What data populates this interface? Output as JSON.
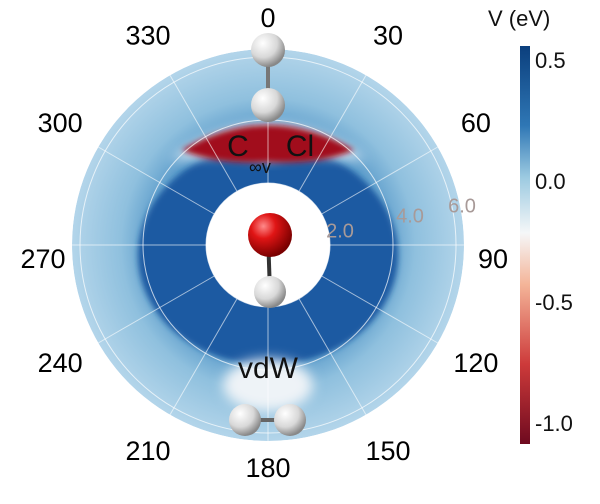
{
  "chart_data": {
    "type": "heatmap",
    "projection": "polar",
    "angular_ticks": [
      "0",
      "30",
      "60",
      "90",
      "120",
      "150",
      "180",
      "210",
      "240",
      "270",
      "300",
      "330"
    ],
    "radial_ticks": [
      "2.0",
      "4.0",
      "6.0"
    ],
    "radial_range": [
      2.0,
      6.3
    ],
    "colorbar": {
      "label": "V (eV)",
      "ticks": [
        "0.5",
        "0.0",
        "-0.5",
        "-1.0"
      ],
      "range": [
        -1.0,
        0.5
      ],
      "colormap": "RdBu",
      "colors": {
        "max": "#0b3f7d",
        "zero": "#f3f7fa",
        "min": "#6e0a1f"
      }
    },
    "annotations": {
      "linear_label": "C",
      "linear_sub": "∞v",
      "cl_label": "Cl",
      "vdw_label": "vdW"
    },
    "regions": [
      {
        "name": "",
        "description_value": "",
        "angle_range": [
          -40,
          40
        ],
        "value": -1.0
      },
      {
        "angle_range": [
          0,
          360
        ],
        "value": 0.5
      },
      {
        "angle_range": [
          160,
          200
        ],
        "value": 0.0
      }
    ],
    "grid": true
  }
}
